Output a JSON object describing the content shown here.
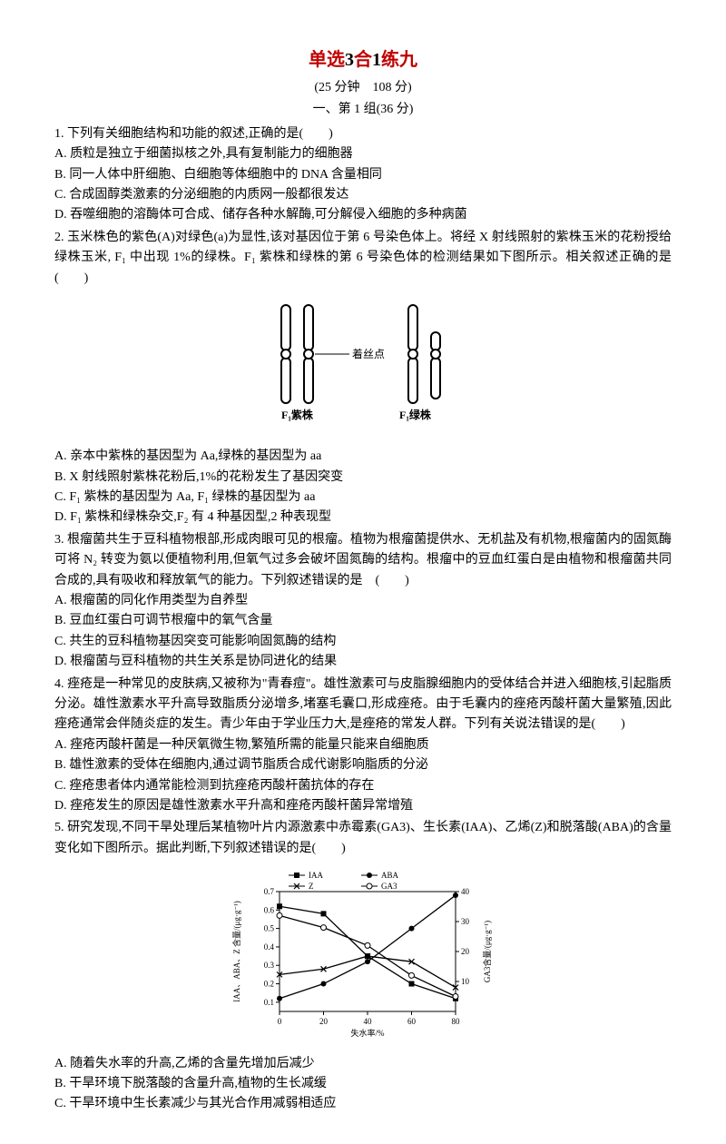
{
  "title": {
    "parts": [
      {
        "text": "单选",
        "color": "red"
      },
      {
        "text": "3",
        "color": "black"
      },
      {
        "text": "合",
        "color": "red"
      },
      {
        "text": "1",
        "color": "black"
      },
      {
        "text": "练九",
        "color": "red"
      }
    ]
  },
  "time_score": "(25 分钟　108 分)",
  "section1": "一、第 1 组(36 分)",
  "q1": {
    "stem": "1. 下列有关细胞结构和功能的叙述,正确的是(　　)",
    "A": "A. 质粒是独立于细菌拟核之外,具有复制能力的细胞器",
    "B": "B. 同一人体中肝细胞、白细胞等体细胞中的 DNA 含量相同",
    "C": "C. 合成固醇类激素的分泌细胞的内质网一般都很发达",
    "D": "D. 吞噬细胞的溶酶体可合成、储存各种水解酶,可分解侵入细胞的多种病菌"
  },
  "q2": {
    "stem": "2. 玉米株色的紫色(A)对绿色(a)为显性,该对基因位于第 6 号染色体上。将经 X 射线照射的紫株玉米的花粉授给绿株玉米, F₁ 中出现 1%的绿株。F₁ 紫株和绿株的第 6 号染色体的检测结果如下图所示。相关叙述正确的是(　　)",
    "A": "A. 亲本中紫株的基因型为 Aa,绿株的基因型为 aa",
    "B": "B. X 射线照射紫株花粉后,1%的花粉发生了基因突变",
    "C": "C. F₁ 紫株的基因型为 Aa, F₁ 绿株的基因型为 aa",
    "D": "D. F₁ 紫株和绿株杂交,F₂ 有 4 种基因型,2 种表现型",
    "fig_label1": "着丝点",
    "fig_label2": "F₁紫株",
    "fig_label3": "F₁绿株"
  },
  "q3": {
    "stem": "3. 根瘤菌共生于豆科植物根部,形成肉眼可见的根瘤。植物为根瘤菌提供水、无机盐及有机物,根瘤菌内的固氮酶可将 N₂ 转变为氨以便植物利用,但氧气过多会破坏固氮酶的结构。根瘤中的豆血红蛋白是由植物和根瘤菌共同合成的,具有吸收和释放氧气的能力。下列叙述错误的是　(　　)",
    "A": "A. 根瘤菌的同化作用类型为自养型",
    "B": "B. 豆血红蛋白可调节根瘤中的氧气含量",
    "C": "C. 共生的豆科植物基因突变可能影响固氮酶的结构",
    "D": "D. 根瘤菌与豆科植物的共生关系是协同进化的结果"
  },
  "q4": {
    "stem": "4. 痤疮是一种常见的皮肤病,又被称为\"青春痘\"。雄性激素可与皮脂腺细胞内的受体结合并进入细胞核,引起脂质分泌。雄性激素水平升高导致脂质分泌增多,堵塞毛囊口,形成痤疮。由于毛囊内的痤疮丙酸杆菌大量繁殖,因此痤疮通常会伴随炎症的发生。青少年由于学业压力大,是痤疮的常发人群。下列有关说法错误的是(　　)",
    "A": "A. 痤疮丙酸杆菌是一种厌氧微生物,繁殖所需的能量只能来自细胞质",
    "B": "B. 雄性激素的受体在细胞内,通过调节脂质合成代谢影响脂质的分泌",
    "C": "C. 痤疮患者体内通常能检测到抗痤疮丙酸杆菌抗体的存在",
    "D": "D. 痤疮发生的原因是雄性激素水平升高和痤疮丙酸杆菌异常增殖"
  },
  "q5": {
    "stem": "5. 研究发现,不同干旱处理后某植物叶片内源激素中赤霉素(GA3)、生长素(IAA)、乙烯(Z)和脱落酸(ABA)的含量变化如下图所示。据此判断,下列叙述错误的是(　　)",
    "A": "A. 随着失水率的升高,乙烯的含量先增加后减少",
    "B": "B. 干旱环境下脱落酸的含量升高,植物的生长减缓",
    "C": "C. 干旱环境中生长素减少与其光合作用减弱相适应",
    "chart": {
      "type": "line",
      "xlabel": "失水率/%",
      "ylabel_left": "IAA、ABA、Z 含量/(μg·g⁻¹)",
      "ylabel_right": "GA3含量/(μg·g⁻¹)",
      "x_ticks": [
        0,
        20,
        40,
        60,
        80
      ],
      "y_left_ticks": [
        0.1,
        0.2,
        0.3,
        0.4,
        0.5,
        0.6,
        0.7
      ],
      "y_right_ticks": [
        10,
        20,
        30,
        40
      ],
      "legend": [
        "IAA",
        "ABA",
        "Z",
        "GA3"
      ],
      "markers": {
        "IAA": "filled-square",
        "ABA": "filled-circle",
        "Z": "x",
        "GA3": "open-circle"
      },
      "series": {
        "IAA": {
          "x": [
            0,
            20,
            40,
            60,
            80
          ],
          "y_left": [
            0.62,
            0.58,
            0.35,
            0.2,
            0.12
          ]
        },
        "ABA": {
          "x": [
            0,
            20,
            40,
            60,
            80
          ],
          "y_left": [
            0.12,
            0.2,
            0.32,
            0.5,
            0.68
          ]
        },
        "Z": {
          "x": [
            0,
            20,
            40,
            60,
            80
          ],
          "y_left": [
            0.25,
            0.28,
            0.35,
            0.32,
            0.18
          ]
        },
        "GA3": {
          "x": [
            0,
            20,
            40,
            60,
            80
          ],
          "y_right": [
            32,
            28,
            22,
            12,
            5
          ]
        }
      },
      "colors": {
        "axis": "#000000",
        "line": "#000000",
        "bg": "#ffffff"
      },
      "font_size": 9
    }
  }
}
